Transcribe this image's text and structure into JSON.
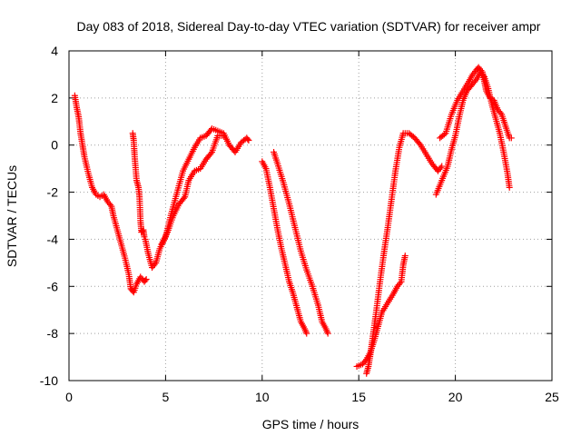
{
  "chart_data": {
    "type": "scatter",
    "title": "Day 083 of 2018, Sidereal Day-to-day VTEC variation (SDTVAR) for receiver ampr",
    "xlabel": "GPS time / hours",
    "ylabel": "SDTVAR / TECUs",
    "xlim": [
      0,
      25
    ],
    "ylim": [
      -10,
      4
    ],
    "xticks": [
      0,
      5,
      10,
      15,
      20,
      25
    ],
    "yticks": [
      -10,
      -8,
      -6,
      -4,
      -2,
      0,
      2,
      4
    ],
    "grid": true,
    "marker": "plus",
    "color": "#ff0000",
    "series": [
      {
        "points": [
          [
            0.3,
            2.1
          ],
          [
            0.4,
            1.6
          ],
          [
            0.5,
            1.2
          ],
          [
            0.6,
            0.5
          ],
          [
            0.7,
            0.0
          ],
          [
            0.8,
            -0.5
          ],
          [
            1.0,
            -1.2
          ],
          [
            1.2,
            -1.8
          ],
          [
            1.4,
            -2.1
          ],
          [
            1.6,
            -2.2
          ],
          [
            1.8,
            -2.1
          ],
          [
            2.0,
            -2.4
          ],
          [
            2.2,
            -2.6
          ],
          [
            2.3,
            -3.0
          ],
          [
            2.5,
            -3.6
          ],
          [
            2.7,
            -4.2
          ],
          [
            2.9,
            -4.8
          ],
          [
            3.1,
            -5.5
          ],
          [
            3.2,
            -6.1
          ],
          [
            3.35,
            -6.25
          ],
          [
            3.5,
            -5.9
          ],
          [
            3.7,
            -5.6
          ],
          [
            3.9,
            -5.8
          ],
          [
            4.0,
            -5.7
          ]
        ]
      },
      {
        "points": [
          [
            3.3,
            0.5
          ],
          [
            3.35,
            0.2
          ],
          [
            3.4,
            -0.5
          ],
          [
            3.5,
            -1.5
          ],
          [
            3.6,
            -1.8
          ],
          [
            3.65,
            -2.2
          ],
          [
            3.7,
            -3.2
          ],
          [
            3.75,
            -3.7
          ],
          [
            3.85,
            -3.6
          ],
          [
            3.9,
            -3.9
          ]
        ]
      },
      {
        "points": [
          [
            3.95,
            -4.0
          ],
          [
            4.1,
            -4.6
          ],
          [
            4.3,
            -5.2
          ],
          [
            4.5,
            -5.0
          ],
          [
            4.7,
            -4.4
          ],
          [
            5.0,
            -3.9
          ],
          [
            5.3,
            -2.9
          ],
          [
            5.6,
            -2.0
          ],
          [
            5.9,
            -1.1
          ],
          [
            6.2,
            -0.6
          ],
          [
            6.5,
            -0.1
          ],
          [
            6.8,
            0.3
          ],
          [
            7.1,
            0.4
          ],
          [
            7.4,
            0.7
          ],
          [
            7.7,
            0.6
          ],
          [
            8.0,
            0.5
          ],
          [
            8.3,
            0.0
          ],
          [
            8.6,
            -0.3
          ],
          [
            8.9,
            0.1
          ],
          [
            9.2,
            0.3
          ],
          [
            9.3,
            0.2
          ]
        ]
      },
      {
        "points": [
          [
            4.8,
            -4.2
          ],
          [
            5.1,
            -3.7
          ],
          [
            5.4,
            -3.0
          ],
          [
            5.7,
            -2.5
          ],
          [
            6.0,
            -2.2
          ],
          [
            6.2,
            -1.5
          ],
          [
            6.5,
            -1.1
          ],
          [
            6.8,
            -1.0
          ],
          [
            7.1,
            -0.6
          ],
          [
            7.4,
            -0.3
          ],
          [
            7.7,
            0.4
          ],
          [
            8.0,
            0.4
          ]
        ]
      },
      {
        "points": [
          [
            10.0,
            -0.7
          ],
          [
            10.2,
            -1.0
          ],
          [
            10.4,
            -1.8
          ],
          [
            10.6,
            -2.7
          ],
          [
            10.8,
            -3.6
          ],
          [
            11.0,
            -4.4
          ],
          [
            11.2,
            -5.1
          ],
          [
            11.4,
            -5.8
          ],
          [
            11.6,
            -6.3
          ],
          [
            11.8,
            -6.9
          ],
          [
            12.0,
            -7.5
          ],
          [
            12.2,
            -7.8
          ],
          [
            12.3,
            -8.0
          ]
        ]
      },
      {
        "points": [
          [
            10.6,
            -0.3
          ],
          [
            10.8,
            -0.8
          ],
          [
            11.1,
            -1.6
          ],
          [
            11.4,
            -2.5
          ],
          [
            11.7,
            -3.5
          ],
          [
            12.0,
            -4.5
          ],
          [
            12.3,
            -5.3
          ],
          [
            12.6,
            -6.0
          ],
          [
            12.9,
            -6.8
          ],
          [
            13.1,
            -7.5
          ],
          [
            13.3,
            -7.8
          ],
          [
            13.4,
            -8.0
          ]
        ]
      },
      {
        "points": [
          [
            14.9,
            -9.4
          ],
          [
            15.2,
            -9.3
          ],
          [
            15.4,
            -9.1
          ],
          [
            15.6,
            -8.8
          ],
          [
            15.8,
            -8.3
          ],
          [
            16.0,
            -7.7
          ],
          [
            16.2,
            -7.1
          ],
          [
            16.5,
            -6.7
          ],
          [
            16.8,
            -6.3
          ],
          [
            17.0,
            -6.0
          ],
          [
            17.2,
            -5.8
          ],
          [
            17.3,
            -5.1
          ],
          [
            17.4,
            -4.7
          ]
        ]
      },
      {
        "points": [
          [
            15.4,
            -9.7
          ],
          [
            15.5,
            -9.4
          ],
          [
            15.6,
            -8.9
          ],
          [
            15.7,
            -8.3
          ],
          [
            15.9,
            -7.1
          ],
          [
            16.1,
            -5.8
          ],
          [
            16.3,
            -4.6
          ],
          [
            16.5,
            -3.5
          ],
          [
            16.7,
            -2.3
          ],
          [
            16.9,
            -1.1
          ],
          [
            17.1,
            -0.1
          ],
          [
            17.3,
            0.5
          ],
          [
            17.6,
            0.5
          ],
          [
            17.9,
            0.3
          ],
          [
            18.2,
            0.0
          ],
          [
            18.5,
            -0.4
          ],
          [
            18.8,
            -0.8
          ],
          [
            19.1,
            -1.1
          ],
          [
            19.3,
            -0.9
          ]
        ]
      },
      {
        "points": [
          [
            19.0,
            -2.1
          ],
          [
            19.3,
            -1.5
          ],
          [
            19.6,
            -0.9
          ],
          [
            19.8,
            -0.2
          ],
          [
            20.0,
            0.4
          ],
          [
            20.2,
            1.2
          ],
          [
            20.4,
            1.9
          ],
          [
            20.6,
            2.3
          ],
          [
            20.9,
            2.6
          ],
          [
            21.1,
            2.8
          ],
          [
            21.3,
            3.1
          ],
          [
            21.5,
            2.9
          ],
          [
            21.7,
            2.4
          ],
          [
            21.9,
            1.7
          ],
          [
            22.1,
            1.1
          ],
          [
            22.3,
            0.5
          ],
          [
            22.5,
            -0.3
          ],
          [
            22.7,
            -1.2
          ],
          [
            22.8,
            -1.8
          ]
        ]
      },
      {
        "points": [
          [
            19.2,
            0.3
          ],
          [
            19.5,
            0.5
          ],
          [
            19.8,
            1.3
          ],
          [
            20.1,
            1.9
          ],
          [
            20.4,
            2.3
          ],
          [
            20.7,
            2.7
          ],
          [
            20.9,
            3.0
          ],
          [
            21.1,
            3.2
          ],
          [
            21.2,
            3.3
          ],
          [
            21.4,
            3.1
          ],
          [
            21.5,
            2.7
          ],
          [
            21.6,
            2.3
          ],
          [
            21.8,
            2.0
          ],
          [
            22.0,
            1.9
          ],
          [
            22.2,
            1.5
          ],
          [
            22.4,
            1.3
          ],
          [
            22.6,
            0.8
          ],
          [
            22.8,
            0.3
          ],
          [
            22.9,
            0.3
          ]
        ]
      }
    ]
  }
}
